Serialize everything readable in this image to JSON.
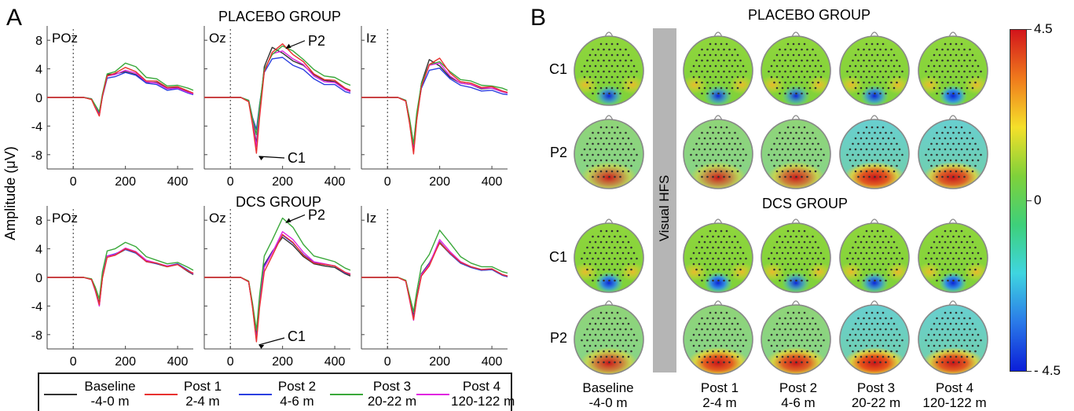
{
  "panel_a": {
    "letter": "A",
    "ylabel": "Amplitude (μV)",
    "groups": [
      {
        "title": "PLACEBO GROUP"
      },
      {
        "title": "DCS GROUP"
      }
    ],
    "electrodes": [
      "POz",
      "Oz",
      "Iz"
    ],
    "annotations": {
      "p2": "P2",
      "c1": "C1"
    }
  },
  "chart_data": {
    "type": "line",
    "xlim": [
      -100,
      460
    ],
    "ylim": [
      -10,
      10
    ],
    "x_ticks": [
      0,
      200,
      400
    ],
    "y_ticks": [
      8,
      4,
      0,
      -4,
      -8
    ],
    "x_tick_labels": [
      "0",
      "200",
      "400"
    ],
    "y_tick_labels": [
      "8",
      "4",
      "0",
      "-4",
      "-8"
    ],
    "stimulus_marker_x": 0,
    "series_names": [
      "Baseline -4-0 m",
      "Post 1 2-4 m",
      "Post 2 4-6 m",
      "Post 3 20-22 m",
      "Post 4 120-122 m"
    ],
    "series_colors": [
      "#333333",
      "#e8312f",
      "#2b3fe0",
      "#3aa83a",
      "#e025e0"
    ],
    "x": [
      -100,
      0,
      40,
      70,
      85,
      100,
      112,
      130,
      160,
      200,
      240,
      280,
      320,
      360,
      400,
      440,
      460
    ],
    "plots": [
      {
        "group": "PLACEBO GROUP",
        "electrode": "POz",
        "series": [
          [
            0,
            0,
            0,
            -0.2,
            -1.2,
            -2.2,
            0.3,
            3.2,
            3.3,
            3.6,
            3.2,
            2.1,
            2.1,
            1.3,
            1.4,
            0.8,
            0.5
          ],
          [
            0,
            0,
            0,
            -0.3,
            -1.5,
            -2.6,
            0.2,
            3.0,
            3.4,
            4.2,
            3.6,
            2.3,
            2.3,
            1.4,
            1.5,
            0.9,
            0.6
          ],
          [
            0,
            0,
            0,
            -0.2,
            -1.3,
            -2.4,
            0.1,
            2.7,
            2.9,
            3.5,
            3.1,
            2.0,
            1.8,
            1.0,
            1.2,
            0.6,
            0.4
          ],
          [
            0,
            0,
            0,
            -0.2,
            -1.1,
            -2.0,
            0.5,
            3.3,
            3.6,
            4.8,
            4.3,
            2.8,
            2.6,
            1.6,
            1.7,
            1.3,
            1.0
          ],
          [
            0,
            0,
            0,
            -0.2,
            -1.4,
            -2.5,
            0.2,
            3.0,
            3.2,
            3.8,
            3.4,
            2.2,
            2.0,
            1.2,
            1.3,
            0.7,
            0.5
          ]
        ]
      },
      {
        "group": "PLACEBO GROUP",
        "electrode": "Oz",
        "series": [
          [
            0,
            0,
            0,
            -0.5,
            -3.2,
            -6.4,
            -2.0,
            4.3,
            7.0,
            6.2,
            5.1,
            4.5,
            3.2,
            2.4,
            2.2,
            1.2,
            0.9
          ],
          [
            0,
            0,
            0,
            -0.6,
            -3.8,
            -7.8,
            -2.8,
            3.6,
            6.3,
            7.5,
            6.0,
            5.0,
            3.3,
            2.5,
            2.4,
            1.3,
            1.0
          ],
          [
            0,
            0,
            0,
            -0.4,
            -2.8,
            -4.5,
            -1.0,
            3.5,
            5.4,
            5.6,
            4.5,
            3.9,
            2.6,
            1.8,
            1.8,
            0.8,
            0.6
          ],
          [
            0,
            0,
            0,
            -0.4,
            -2.9,
            -5.2,
            -1.2,
            3.9,
            6.0,
            7.2,
            6.5,
            5.3,
            3.9,
            3.0,
            2.8,
            2.0,
            1.7
          ],
          [
            0,
            0,
            0,
            -0.5,
            -3.4,
            -6.9,
            -2.2,
            3.8,
            6.1,
            6.5,
            5.4,
            4.6,
            3.0,
            2.2,
            2.1,
            1.1,
            0.8
          ]
        ]
      },
      {
        "group": "PLACEBO GROUP",
        "electrode": "Iz",
        "series": [
          [
            0,
            0,
            0,
            -0.5,
            -3.5,
            -7.4,
            -3.0,
            2.0,
            5.3,
            4.4,
            2.8,
            2.0,
            1.8,
            1.2,
            1.3,
            0.8,
            0.6
          ],
          [
            0,
            0,
            0,
            -0.5,
            -3.7,
            -7.9,
            -3.2,
            1.5,
            4.6,
            5.5,
            3.4,
            2.2,
            2.0,
            1.4,
            1.5,
            0.9,
            0.7
          ],
          [
            0,
            0,
            0,
            -0.4,
            -3.2,
            -6.6,
            -2.5,
            1.3,
            3.8,
            4.1,
            2.6,
            1.7,
            1.4,
            0.9,
            1.0,
            0.5,
            0.4
          ],
          [
            0,
            0,
            0,
            -0.4,
            -3.0,
            -6.5,
            -2.2,
            1.9,
            4.6,
            5.0,
            3.6,
            2.5,
            2.3,
            1.7,
            1.6,
            1.3,
            1.0
          ],
          [
            0,
            0,
            0,
            -0.5,
            -3.6,
            -7.6,
            -3.0,
            1.6,
            4.5,
            4.8,
            3.0,
            2.0,
            1.8,
            1.3,
            1.3,
            0.8,
            0.6
          ]
        ]
      },
      {
        "group": "DCS GROUP",
        "electrode": "POz",
        "series": [
          [
            0,
            0,
            0,
            -0.3,
            -1.8,
            -3.6,
            0.0,
            3.0,
            3.1,
            3.9,
            3.4,
            2.3,
            1.9,
            1.5,
            1.8,
            0.8,
            0.4
          ],
          [
            0,
            0,
            0,
            -0.3,
            -1.8,
            -3.8,
            -0.1,
            2.8,
            3.1,
            4.0,
            3.5,
            2.2,
            2.0,
            1.5,
            1.8,
            0.9,
            0.6
          ],
          [
            0,
            0,
            0,
            -0.3,
            -1.9,
            -3.9,
            0.1,
            3.0,
            3.3,
            3.9,
            3.4,
            2.2,
            1.9,
            1.6,
            1.9,
            1.0,
            0.5
          ],
          [
            0,
            0,
            0,
            -0.2,
            -1.4,
            -3.0,
            0.8,
            3.7,
            4.0,
            4.9,
            4.3,
            2.9,
            2.4,
            1.9,
            2.1,
            1.4,
            1.0
          ],
          [
            0,
            0,
            0,
            -0.3,
            -1.9,
            -4.0,
            0.0,
            3.0,
            3.2,
            4.1,
            3.6,
            2.4,
            2.0,
            1.6,
            1.8,
            0.9,
            0.5
          ]
        ]
      },
      {
        "group": "DCS GROUP",
        "electrode": "Oz",
        "series": [
          [
            0,
            0,
            0,
            -0.6,
            -4.0,
            -8.2,
            -3.5,
            1.8,
            3.6,
            5.6,
            4.5,
            2.9,
            1.9,
            1.6,
            1.4,
            0.5,
            0.2
          ],
          [
            0,
            0,
            0,
            -0.6,
            -4.2,
            -9.0,
            -4.2,
            0.8,
            3.0,
            6.0,
            4.9,
            3.1,
            2.0,
            1.8,
            1.6,
            0.7,
            0.4
          ],
          [
            0,
            0,
            0,
            -0.6,
            -4.0,
            -8.5,
            -3.6,
            1.6,
            3.5,
            5.9,
            4.8,
            3.2,
            2.1,
            1.8,
            1.6,
            0.6,
            0.4
          ],
          [
            0,
            0,
            0,
            -0.5,
            -3.6,
            -7.4,
            -2.5,
            3.0,
            5.2,
            8.3,
            7.0,
            4.6,
            3.0,
            2.6,
            2.2,
            1.3,
            1.0
          ],
          [
            0,
            0,
            0,
            -0.6,
            -4.1,
            -8.8,
            -3.8,
            1.4,
            3.4,
            6.4,
            5.3,
            3.5,
            2.2,
            1.9,
            1.6,
            0.7,
            0.5
          ]
        ]
      },
      {
        "group": "DCS GROUP",
        "electrode": "Iz",
        "series": [
          [
            0,
            0,
            0,
            -0.5,
            -3.0,
            -5.4,
            -2.8,
            0.5,
            2.0,
            4.8,
            3.3,
            2.0,
            1.4,
            1.0,
            1.1,
            0.3,
            0.1
          ],
          [
            0,
            0,
            0,
            -0.5,
            -3.1,
            -5.9,
            -3.0,
            0.2,
            1.6,
            4.9,
            3.4,
            2.1,
            1.5,
            1.1,
            1.2,
            0.4,
            0.2
          ],
          [
            0,
            0,
            0,
            -0.5,
            -3.0,
            -5.6,
            -2.9,
            0.4,
            1.9,
            5.0,
            3.3,
            2.0,
            1.4,
            1.0,
            1.1,
            0.3,
            0.1
          ],
          [
            0,
            0,
            0,
            -0.4,
            -2.6,
            -4.8,
            -2.0,
            1.6,
            3.2,
            6.6,
            4.8,
            2.9,
            2.0,
            1.5,
            1.5,
            0.8,
            0.6
          ],
          [
            0,
            0,
            0,
            -0.5,
            -3.2,
            -6.0,
            -3.0,
            0.4,
            1.8,
            5.3,
            3.6,
            2.2,
            1.5,
            1.1,
            1.2,
            0.4,
            0.2
          ]
        ]
      }
    ]
  },
  "legend": [
    {
      "name": "Baseline",
      "sub": "-4-0 m",
      "color": "#333333"
    },
    {
      "name": "Post 1",
      "sub": "2-4 m",
      "color": "#e8312f"
    },
    {
      "name": "Post 2",
      "sub": "4-6 m",
      "color": "#2b3fe0"
    },
    {
      "name": "Post 3",
      "sub": "20-22 m",
      "color": "#3aa83a"
    },
    {
      "name": "Post 4",
      "sub": "120-122 m",
      "color": "#e025e0"
    }
  ],
  "panel_b": {
    "letter": "B",
    "groups": [
      "PLACEBO GROUP",
      "DCS GROUP"
    ],
    "row_labels": [
      "C1",
      "P2",
      "C1",
      "P2"
    ],
    "hfs_label": "Visual HFS",
    "columns": [
      {
        "name": "Baseline",
        "sub": "-4-0 m"
      },
      {
        "name": "Post 1",
        "sub": "2-4 m"
      },
      {
        "name": "Post 2",
        "sub": "4-6 m"
      },
      {
        "name": "Post 3",
        "sub": "20-22 m"
      },
      {
        "name": "Post 4",
        "sub": "120-122 m"
      }
    ],
    "colorbar": {
      "max": "4.5",
      "mid": "0",
      "min": "- 4.5",
      "colors": [
        "#d2141b",
        "#f07a1c",
        "#f5e02a",
        "#7fd13a",
        "#3ed07a",
        "#3fd5e0",
        "#2a7ae8",
        "#0b1ed8"
      ]
    },
    "topomap_intensity": {
      "c1_rows": [
        [
          0.75,
          0.7,
          0.65,
          0.8,
          0.95
        ],
        [
          0.9,
          0.95,
          0.7,
          0.8,
          0.95
        ]
      ],
      "p2_rows": [
        [
          0.6,
          0.6,
          0.7,
          0.95,
          0.9
        ],
        [
          0.7,
          0.95,
          0.9,
          1.0,
          0.95
        ]
      ]
    }
  }
}
